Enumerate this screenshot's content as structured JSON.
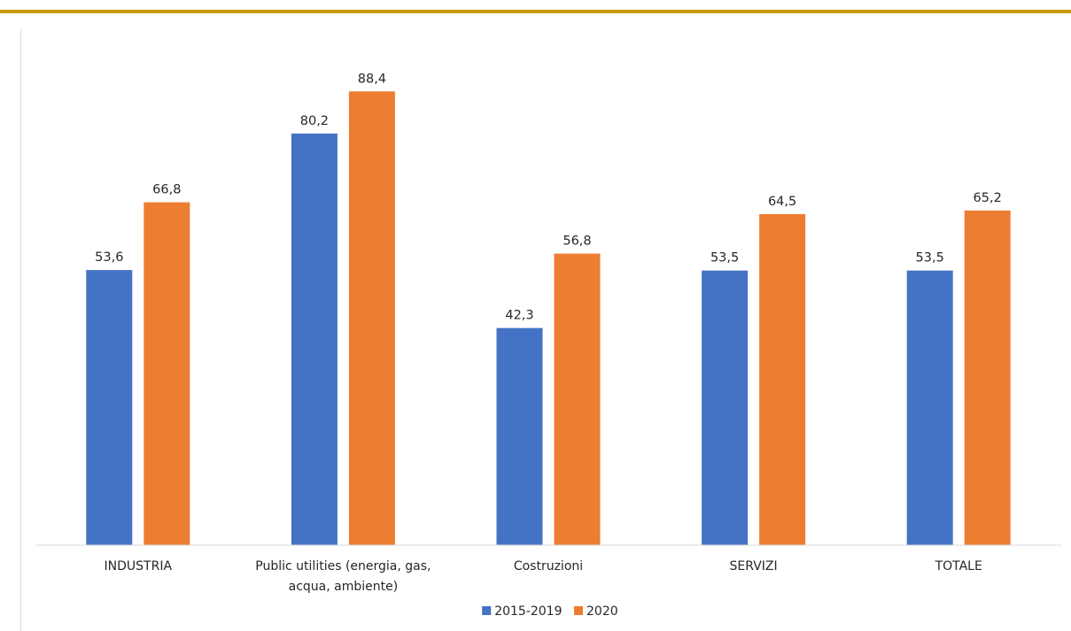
{
  "chart_data": {
    "type": "bar",
    "categories": [
      [
        "INDUSTRIA"
      ],
      [
        "Public utilities (energia, gas,",
        "acqua, ambiente)"
      ],
      [
        "Costruzioni"
      ],
      [
        "SERVIZI"
      ],
      [
        "TOTALE"
      ]
    ],
    "series": [
      {
        "name": "2015-2019",
        "color": "#4472c4",
        "values": [
          53.6,
          80.2,
          42.3,
          53.5,
          53.5
        ],
        "labels": [
          "53,6",
          "80,2",
          "42,3",
          "53,5",
          "53,5"
        ]
      },
      {
        "name": "2020",
        "color": "#ed7d31",
        "values": [
          66.8,
          88.4,
          56.8,
          64.5,
          65.2
        ],
        "labels": [
          "66,8",
          "88,4",
          "56,8",
          "64,5",
          "65,2"
        ]
      }
    ],
    "ylim": [
      0,
      100
    ],
    "grid": false,
    "legend_position": "bottom",
    "data_labels": true,
    "accent_rule_color": "#c89800"
  }
}
